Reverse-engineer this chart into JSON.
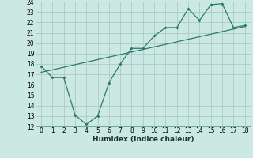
{
  "xlabel": "Humidex (Indice chaleur)",
  "x_data": [
    0,
    1,
    2,
    3,
    4,
    5,
    6,
    7,
    8,
    9,
    10,
    11,
    12,
    13,
    14,
    15,
    16,
    17,
    18
  ],
  "y_data": [
    17.8,
    16.7,
    16.7,
    13.1,
    12.2,
    13.0,
    16.2,
    18.0,
    19.5,
    19.5,
    20.7,
    21.5,
    21.5,
    23.3,
    22.2,
    23.7,
    23.8,
    21.5,
    21.7
  ],
  "trend_x": [
    0,
    18
  ],
  "trend_y": [
    17.2,
    21.6
  ],
  "line_color": "#2a7a6a",
  "bg_color": "#cce8e2",
  "grid_color": "#aaccC6",
  "ylim": [
    12,
    24
  ],
  "xlim": [
    -0.5,
    18.5
  ],
  "yticks": [
    12,
    13,
    14,
    15,
    16,
    17,
    18,
    19,
    20,
    21,
    22,
    23,
    24
  ],
  "xticks": [
    0,
    1,
    2,
    3,
    4,
    5,
    6,
    7,
    8,
    9,
    10,
    11,
    12,
    13,
    14,
    15,
    16,
    17,
    18
  ],
  "tick_fontsize": 5.5,
  "xlabel_fontsize": 6.5
}
